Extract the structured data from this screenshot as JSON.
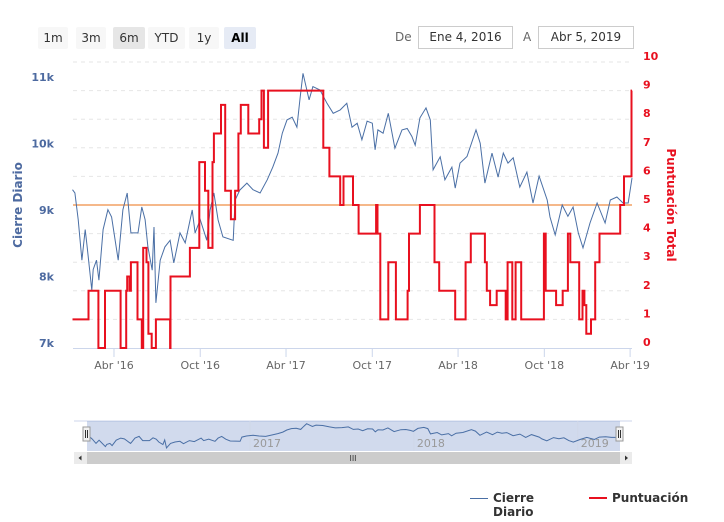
{
  "range_selector": {
    "buttons": [
      "1m",
      "3m",
      "6m",
      "YTD",
      "1y",
      "All"
    ],
    "selected": "All",
    "from_label": "De",
    "from_value": "Ene 4, 2016",
    "to_label": "A",
    "to_value": "Abr 5, 2019"
  },
  "legend": {
    "series_1": "Cierre Diario",
    "series_2": "Puntuación"
  },
  "navigator": {
    "labels": [
      "2017",
      "2018",
      "2019"
    ],
    "scrollbar_grip": "III"
  },
  "colors": {
    "cierre": "#4a6fa5",
    "puntuacion": "#e8101f",
    "plot_line": "#f5b88a",
    "left_axis": "#4d6aa0"
  },
  "chart_data": {
    "type": "line",
    "x_type": "datetime",
    "xlim": [
      "2016-01-04",
      "2019-04-05"
    ],
    "x_ticks": [
      "Abr '16",
      "Oct '16",
      "Abr '17",
      "Oct '17",
      "Abr '18",
      "Oct '18",
      "Abr '19"
    ],
    "x_tick_dates": [
      "2016-04-01",
      "2016-10-01",
      "2017-04-01",
      "2017-10-01",
      "2018-04-01",
      "2018-10-01",
      "2019-04-01"
    ],
    "grid": true,
    "legend_position": "bottom-right",
    "y_left": {
      "title": "Cierre Diario",
      "ticks": [
        "7k",
        "8k",
        "9k",
        "10k",
        "11k"
      ],
      "tick_values": [
        7000,
        8000,
        9000,
        10000,
        11000
      ],
      "range": [
        7000,
        11000
      ]
    },
    "y_right": {
      "title": "Puntuación Total",
      "ticks": [
        "0",
        "1",
        "2",
        "3",
        "4",
        "5",
        "6",
        "7",
        "8",
        "9",
        "10"
      ],
      "range": [
        0,
        10
      ],
      "plot_line": 5
    },
    "series": [
      {
        "name": "Cierre Diario",
        "axis": "left",
        "step": false,
        "points": [
          [
            "2016-01-04",
            9350
          ],
          [
            "2016-01-09",
            9300
          ],
          [
            "2016-01-16",
            8900
          ],
          [
            "2016-01-24",
            8290
          ],
          [
            "2016-01-31",
            8750
          ],
          [
            "2016-02-04",
            8500
          ],
          [
            "2016-02-14",
            7840
          ],
          [
            "2016-02-17",
            8150
          ],
          [
            "2016-02-24",
            8290
          ],
          [
            "2016-02-29",
            7990
          ],
          [
            "2016-03-09",
            8750
          ],
          [
            "2016-03-19",
            9050
          ],
          [
            "2016-03-27",
            8940
          ],
          [
            "2016-04-10",
            8290
          ],
          [
            "2016-04-20",
            9050
          ],
          [
            "2016-04-29",
            9300
          ],
          [
            "2016-05-07",
            8700
          ],
          [
            "2016-05-22",
            8700
          ],
          [
            "2016-05-30",
            9090
          ],
          [
            "2016-06-06",
            8900
          ],
          [
            "2016-06-12",
            8490
          ],
          [
            "2016-06-21",
            8140
          ],
          [
            "2016-06-25",
            8790
          ],
          [
            "2016-06-29",
            7650
          ],
          [
            "2016-07-08",
            8290
          ],
          [
            "2016-07-18",
            8490
          ],
          [
            "2016-07-29",
            8590
          ],
          [
            "2016-08-06",
            8250
          ],
          [
            "2016-08-19",
            8700
          ],
          [
            "2016-08-30",
            8550
          ],
          [
            "2016-09-14",
            9045
          ],
          [
            "2016-09-20",
            8700
          ],
          [
            "2016-10-01",
            8900
          ],
          [
            "2016-10-15",
            8590
          ],
          [
            "2016-10-22",
            9045
          ],
          [
            "2016-10-30",
            9300
          ],
          [
            "2016-11-08",
            8895
          ],
          [
            "2016-11-18",
            8640
          ],
          [
            "2016-12-10",
            8590
          ],
          [
            "2016-12-14",
            9195
          ],
          [
            "2016-12-24",
            9345
          ],
          [
            "2017-01-08",
            9450
          ],
          [
            "2017-01-21",
            9350
          ],
          [
            "2017-02-05",
            9300
          ],
          [
            "2017-02-20",
            9500
          ],
          [
            "2017-03-04",
            9690
          ],
          [
            "2017-03-15",
            9900
          ],
          [
            "2017-03-24",
            10200
          ],
          [
            "2017-04-03",
            10400
          ],
          [
            "2017-04-14",
            10440
          ],
          [
            "2017-04-24",
            10290
          ],
          [
            "2017-05-01",
            10745
          ],
          [
            "2017-05-07",
            11100
          ],
          [
            "2017-05-20",
            10700
          ],
          [
            "2017-05-28",
            10900
          ],
          [
            "2017-06-12",
            10850
          ],
          [
            "2017-06-27",
            10650
          ],
          [
            "2017-07-10",
            10500
          ],
          [
            "2017-07-25",
            10550
          ],
          [
            "2017-08-08",
            10650
          ],
          [
            "2017-08-19",
            10290
          ],
          [
            "2017-08-30",
            10350
          ],
          [
            "2017-09-09",
            10100
          ],
          [
            "2017-09-20",
            10380
          ],
          [
            "2017-10-01",
            10350
          ],
          [
            "2017-10-07",
            9950
          ],
          [
            "2017-10-13",
            10250
          ],
          [
            "2017-10-24",
            10200
          ],
          [
            "2017-11-04",
            10500
          ],
          [
            "2017-11-18",
            9975
          ],
          [
            "2017-12-03",
            10250
          ],
          [
            "2017-12-14",
            10270
          ],
          [
            "2017-12-24",
            10150
          ],
          [
            "2017-12-31",
            10020
          ],
          [
            "2018-01-10",
            10430
          ],
          [
            "2018-01-23",
            10580
          ],
          [
            "2018-02-01",
            10400
          ],
          [
            "2018-02-07",
            9650
          ],
          [
            "2018-02-22",
            9845
          ],
          [
            "2018-03-04",
            9500
          ],
          [
            "2018-03-19",
            9690
          ],
          [
            "2018-03-26",
            9375
          ],
          [
            "2018-04-05",
            9750
          ],
          [
            "2018-04-20",
            9850
          ],
          [
            "2018-05-09",
            10250
          ],
          [
            "2018-05-18",
            10050
          ],
          [
            "2018-05-28",
            9450
          ],
          [
            "2018-06-12",
            9900
          ],
          [
            "2018-06-25",
            9540
          ],
          [
            "2018-07-06",
            9900
          ],
          [
            "2018-07-16",
            9750
          ],
          [
            "2018-07-27",
            9830
          ],
          [
            "2018-08-10",
            9390
          ],
          [
            "2018-08-25",
            9615
          ],
          [
            "2018-09-07",
            9150
          ],
          [
            "2018-09-20",
            9555
          ],
          [
            "2018-10-07",
            9195
          ],
          [
            "2018-10-13",
            8940
          ],
          [
            "2018-10-24",
            8670
          ],
          [
            "2018-11-08",
            9120
          ],
          [
            "2018-11-20",
            8950
          ],
          [
            "2018-12-01",
            9090
          ],
          [
            "2018-12-12",
            8700
          ],
          [
            "2018-12-22",
            8475
          ],
          [
            "2019-01-06",
            8850
          ],
          [
            "2019-01-21",
            9150
          ],
          [
            "2019-02-07",
            8850
          ],
          [
            "2019-02-18",
            9195
          ],
          [
            "2019-03-04",
            9240
          ],
          [
            "2019-03-17",
            9150
          ],
          [
            "2019-03-28",
            9150
          ],
          [
            "2019-04-05",
            9525
          ]
        ]
      },
      {
        "name": "Puntuación",
        "axis": "right",
        "step": true,
        "points": [
          [
            "2016-01-04",
            1
          ],
          [
            "2016-02-07",
            2
          ],
          [
            "2016-02-28",
            0
          ],
          [
            "2016-03-13",
            2
          ],
          [
            "2016-04-15",
            0
          ],
          [
            "2016-04-27",
            2
          ],
          [
            "2016-04-29",
            2.5
          ],
          [
            "2016-05-04",
            2
          ],
          [
            "2016-05-07",
            3
          ],
          [
            "2016-05-21",
            1
          ],
          [
            "2016-05-30",
            0
          ],
          [
            "2016-06-02",
            3.5
          ],
          [
            "2016-06-09",
            3
          ],
          [
            "2016-06-13",
            0.5
          ],
          [
            "2016-06-20",
            0
          ],
          [
            "2016-06-29",
            1
          ],
          [
            "2016-07-29",
            0
          ],
          [
            "2016-07-30",
            2.5
          ],
          [
            "2016-09-09",
            3.5
          ],
          [
            "2016-09-29",
            6.5
          ],
          [
            "2016-10-11",
            5.5
          ],
          [
            "2016-10-18",
            3.5
          ],
          [
            "2016-10-27",
            6.5
          ],
          [
            "2016-10-30",
            7.5
          ],
          [
            "2016-11-14",
            8.5
          ],
          [
            "2016-11-23",
            5.5
          ],
          [
            "2016-12-05",
            4.5
          ],
          [
            "2016-12-14",
            5.5
          ],
          [
            "2016-12-21",
            7.5
          ],
          [
            "2016-12-26",
            8.5
          ],
          [
            "2017-01-11",
            7.5
          ],
          [
            "2017-02-03",
            8
          ],
          [
            "2017-02-08",
            9
          ],
          [
            "2017-02-13",
            7
          ],
          [
            "2017-02-22",
            9
          ],
          [
            "2017-06-19",
            7
          ],
          [
            "2017-07-02",
            6
          ],
          [
            "2017-07-25",
            5
          ],
          [
            "2017-08-01",
            6
          ],
          [
            "2017-08-21",
            5
          ],
          [
            "2017-09-02",
            4
          ],
          [
            "2017-10-09",
            5
          ],
          [
            "2017-10-12",
            4
          ],
          [
            "2017-10-18",
            1
          ],
          [
            "2017-11-04",
            3
          ],
          [
            "2017-11-20",
            1
          ],
          [
            "2017-12-15",
            2
          ],
          [
            "2017-12-18",
            4
          ],
          [
            "2018-01-10",
            5
          ],
          [
            "2018-02-10",
            3
          ],
          [
            "2018-02-20",
            2
          ],
          [
            "2018-03-26",
            1
          ],
          [
            "2018-04-17",
            3
          ],
          [
            "2018-04-28",
            4
          ],
          [
            "2018-05-28",
            3
          ],
          [
            "2018-06-01",
            2
          ],
          [
            "2018-06-08",
            1.5
          ],
          [
            "2018-06-22",
            2
          ],
          [
            "2018-07-11",
            1
          ],
          [
            "2018-07-15",
            3
          ],
          [
            "2018-07-25",
            1
          ],
          [
            "2018-08-01",
            3
          ],
          [
            "2018-08-13",
            1
          ],
          [
            "2018-09-30",
            4
          ],
          [
            "2018-10-04",
            2
          ],
          [
            "2018-10-26",
            1.5
          ],
          [
            "2018-11-09",
            2
          ],
          [
            "2018-11-20",
            4
          ],
          [
            "2018-11-25",
            3
          ],
          [
            "2018-12-14",
            1
          ],
          [
            "2018-12-21",
            2
          ],
          [
            "2018-12-25",
            1.5
          ],
          [
            "2018-12-29",
            0.5
          ],
          [
            "2019-01-08",
            1
          ],
          [
            "2019-01-17",
            3
          ],
          [
            "2019-01-26",
            4
          ],
          [
            "2019-03-11",
            5
          ],
          [
            "2019-03-19",
            6
          ],
          [
            "2019-04-04",
            9
          ],
          [
            "2019-04-05",
            9
          ]
        ]
      }
    ]
  }
}
